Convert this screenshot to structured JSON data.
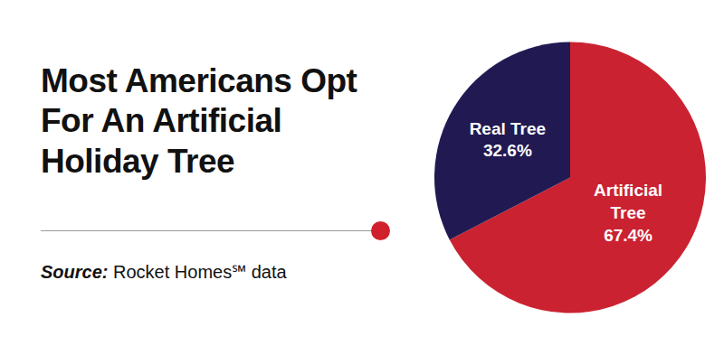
{
  "chart_data": {
    "type": "pie",
    "title": "Most Americans Opt For An Artificial Holiday Tree",
    "source_label": "Source:",
    "source": "Rocket Homes℠ data",
    "categories": [
      "Artificial Tree",
      "Real Tree"
    ],
    "values": [
      67.4,
      32.6
    ],
    "value_labels": [
      "67.4%",
      "32.6%"
    ],
    "colors": [
      "#cb2232",
      "#211a52"
    ],
    "data_labels": true
  }
}
